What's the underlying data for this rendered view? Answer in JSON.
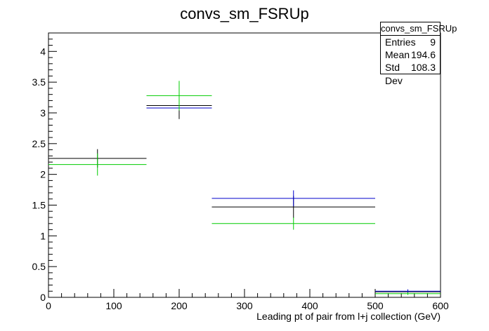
{
  "chart_data": {
    "type": "scatter",
    "title": "convs_sm_FSRUp",
    "xlabel": "Leading pt of pair from l+j collection (GeV)",
    "ylabel": "",
    "xlim": [
      0,
      600
    ],
    "ylim": [
      0,
      4.3
    ],
    "x_ticks": [
      "0",
      "100",
      "200",
      "300",
      "400",
      "500",
      "600"
    ],
    "y_ticks": [
      "0",
      "0.5",
      "1",
      "1.5",
      "2",
      "2.5",
      "3",
      "3.5",
      "4"
    ],
    "grid": false,
    "series": [
      {
        "color": "#000000",
        "points": [
          {
            "x": 75,
            "x_low": 0,
            "x_high": 150,
            "y": 2.26,
            "y_err": 0.15
          },
          {
            "x": 200,
            "x_low": 150,
            "x_high": 250,
            "y": 3.12,
            "y_err": 0.22
          },
          {
            "x": 375,
            "x_low": 250,
            "x_high": 500,
            "y": 1.47,
            "y_err": 0.18
          },
          {
            "x": 550,
            "x_low": 500,
            "x_high": 600,
            "y": 0.09,
            "y_err": 0.03
          }
        ]
      },
      {
        "color": "#0000cc",
        "points": [
          {
            "x": 200,
            "x_low": 150,
            "x_high": 250,
            "y": 3.08,
            "y_err": 0.0
          },
          {
            "x": 375,
            "x_low": 250,
            "x_high": 500,
            "y": 1.61,
            "y_err": 0.13
          },
          {
            "x": 550,
            "x_low": 500,
            "x_high": 600,
            "y": 0.1,
            "y_err": 0.03
          }
        ]
      },
      {
        "color": "#00cc00",
        "points": [
          {
            "x": 75,
            "x_low": 0,
            "x_high": 150,
            "y": 2.16,
            "y_err": 0.18
          },
          {
            "x": 200,
            "x_low": 150,
            "x_high": 250,
            "y": 3.28,
            "y_err": 0.24
          },
          {
            "x": 375,
            "x_low": 250,
            "x_high": 500,
            "y": 1.2,
            "y_err": 0.1
          },
          {
            "x": 550,
            "x_low": 500,
            "x_high": 600,
            "y": 0.06,
            "y_err": 0.02
          }
        ]
      }
    ],
    "stats": {
      "name": "convs_sm_FSRUp",
      "rows": [
        {
          "label": "Entries",
          "value": "9"
        },
        {
          "label": "Mean",
          "value": "194.6"
        },
        {
          "label": "Std Dev",
          "value": "108.3"
        }
      ]
    }
  }
}
